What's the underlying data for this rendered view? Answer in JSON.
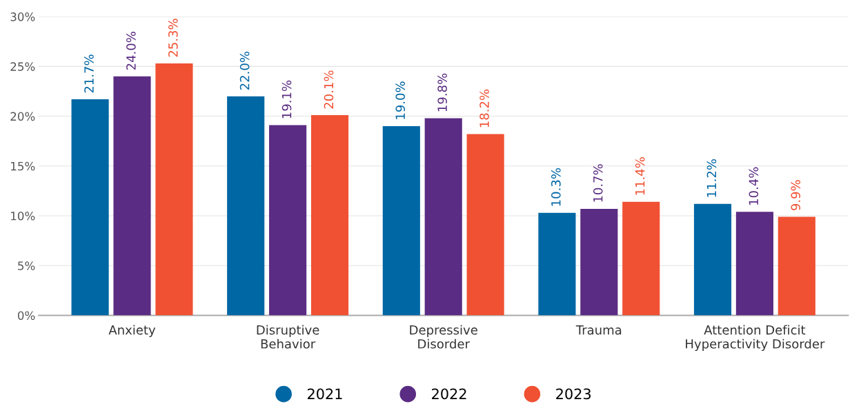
{
  "chart_data": {
    "type": "bar",
    "categories": [
      "Anxiety",
      "Disruptive\nBehavior",
      "Depressive\nDisorder",
      "Trauma",
      "Attention Deficit\nHyperactivity Disorder"
    ],
    "series": [
      {
        "name": "2021",
        "color": "#0067a5",
        "values": [
          21.7,
          22.0,
          19.0,
          10.3,
          11.2
        ],
        "value_labels": [
          "21.7%",
          "22.0%",
          "19.0%",
          "10.3%",
          "11.2%"
        ]
      },
      {
        "name": "2022",
        "color": "#5b2c83",
        "values": [
          24.0,
          19.1,
          19.8,
          10.7,
          10.4
        ],
        "value_labels": [
          "24.0%",
          "19.1%",
          "19.8%",
          "10.7%",
          "10.4%"
        ]
      },
      {
        "name": "2023",
        "color": "#f05133",
        "values": [
          25.3,
          20.1,
          18.2,
          11.4,
          9.9
        ],
        "value_labels": [
          "25.3%",
          "20.1%",
          "18.2%",
          "11.4%",
          "9.9%"
        ]
      }
    ],
    "ylim": [
      0,
      30
    ],
    "yticks": [
      {
        "value": 0,
        "label": "0%"
      },
      {
        "value": 5,
        "label": "5%"
      },
      {
        "value": 10,
        "label": "10%"
      },
      {
        "value": 15,
        "label": "15%"
      },
      {
        "value": 20,
        "label": "20%"
      },
      {
        "value": 25,
        "label": "25%"
      },
      {
        "value": 30,
        "label": "30%"
      }
    ],
    "grid": "y",
    "legend": "bottom"
  }
}
